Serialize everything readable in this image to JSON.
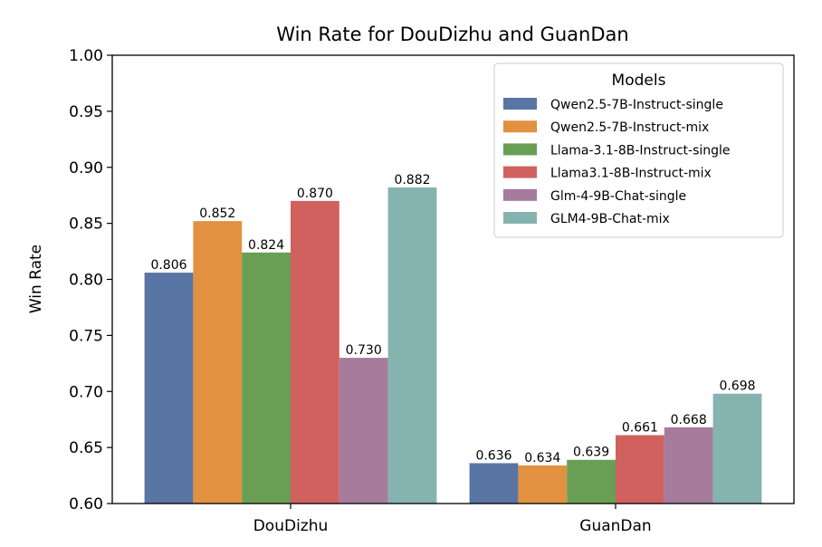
{
  "chart_data": {
    "type": "bar",
    "title": "Win Rate for DouDizhu and GuanDan",
    "xlabel": "",
    "ylabel": "Win Rate",
    "ylim": [
      0.6,
      1.0
    ],
    "yticks": [
      "0.60",
      "0.65",
      "0.70",
      "0.75",
      "0.80",
      "0.85",
      "0.90",
      "0.95",
      "1.00"
    ],
    "categories": [
      "DouDizhu",
      "GuanDan"
    ],
    "grid": false,
    "legend": {
      "title": "Models",
      "placement": "top-right"
    },
    "series": [
      {
        "name": "Qwen2.5-7B-Instruct-single",
        "color": "#5975a4",
        "values": [
          0.806,
          0.636
        ],
        "labels": [
          "0.806",
          "0.636"
        ]
      },
      {
        "name": "Qwen2.5-7B-Instruct-mix",
        "color": "#e1913f",
        "values": [
          0.852,
          0.634
        ],
        "labels": [
          "0.852",
          "0.634"
        ]
      },
      {
        "name": "Llama-3.1-8B-Instruct-single",
        "color": "#689f55",
        "values": [
          0.824,
          0.639
        ],
        "labels": [
          "0.824",
          "0.639"
        ]
      },
      {
        "name": "Llama3.1-8B-Instruct-mix",
        "color": "#d0615f",
        "values": [
          0.87,
          0.661
        ],
        "labels": [
          "0.870",
          "0.661"
        ]
      },
      {
        "name": "Glm-4-9B-Chat-single",
        "color": "#a67b9c",
        "values": [
          0.73,
          0.668
        ],
        "labels": [
          "0.730",
          "0.668"
        ]
      },
      {
        "name": "GLM4-9B-Chat-mix",
        "color": "#85b3b0",
        "values": [
          0.882,
          0.698
        ],
        "labels": [
          "0.882",
          "0.698"
        ]
      }
    ]
  }
}
